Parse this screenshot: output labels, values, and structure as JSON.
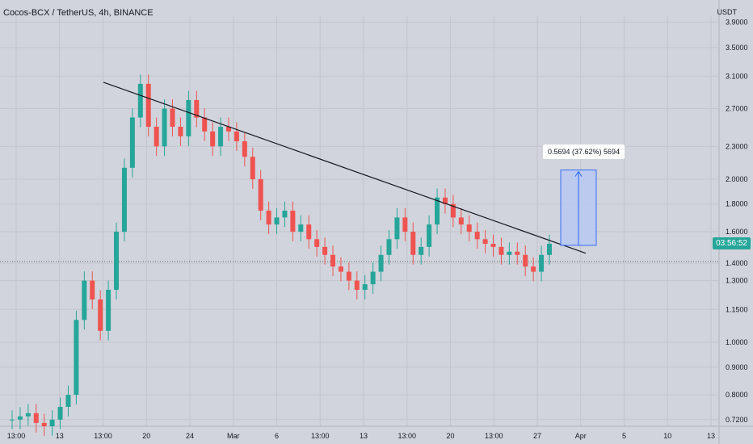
{
  "header": {
    "title": "Cocos-BCX / TetherUS, 4h, BINANCE",
    "currency": "USDT"
  },
  "price_badge": "03:56:52",
  "measure_label": "0.5694 (37.62%) 5694",
  "colors": {
    "background": "#d1d4dc",
    "up": "#26a69a",
    "down": "#ef5350",
    "trendline": "#131722",
    "measure_fill": "#b9c9f0",
    "measure_line": "#2962ff"
  },
  "chart_data": {
    "type": "candlestick",
    "y_scale": "log",
    "y_ticks": [
      "3.9000",
      "3.5000",
      "3.1000",
      "2.7000",
      "2.3000",
      "2.0000",
      "1.8000",
      "1.6000",
      "1.4000",
      "1.3000",
      "1.1500",
      "1.0000",
      "0.9000",
      "0.8000",
      "0.7200"
    ],
    "y_tick_values": [
      3.9,
      3.5,
      3.1,
      2.7,
      2.3,
      2.0,
      1.8,
      1.6,
      1.4,
      1.3,
      1.15,
      1.0,
      0.9,
      0.8,
      0.72
    ],
    "x_ticks": [
      "13:00",
      "13",
      "13:00",
      "20",
      "24",
      "Mar",
      "6",
      "13:00",
      "13",
      "13:00",
      "20",
      "13:00",
      "27",
      "Apr",
      "5",
      "10",
      "13"
    ],
    "close_series": [
      0.72,
      0.73,
      0.74,
      0.71,
      0.7,
      0.72,
      0.76,
      0.8,
      1.1,
      1.3,
      1.2,
      1.05,
      1.25,
      1.6,
      2.1,
      2.6,
      3.0,
      2.5,
      2.3,
      2.7,
      2.5,
      2.4,
      2.8,
      2.6,
      2.45,
      2.3,
      2.5,
      2.45,
      2.35,
      2.2,
      2.0,
      1.75,
      1.65,
      1.7,
      1.75,
      1.6,
      1.65,
      1.55,
      1.5,
      1.45,
      1.38,
      1.35,
      1.3,
      1.25,
      1.28,
      1.35,
      1.45,
      1.55,
      1.7,
      1.6,
      1.45,
      1.5,
      1.65,
      1.85,
      1.8,
      1.7,
      1.65,
      1.6,
      1.55,
      1.52,
      1.5,
      1.45,
      1.47,
      1.45,
      1.38,
      1.35,
      1.45,
      1.52
    ],
    "trendline": {
      "from_price": 3.02,
      "to_price": 1.46
    },
    "current_price": 1.52,
    "reference_price": 1.41,
    "measure": {
      "low": 1.51,
      "high": 2.08
    }
  }
}
